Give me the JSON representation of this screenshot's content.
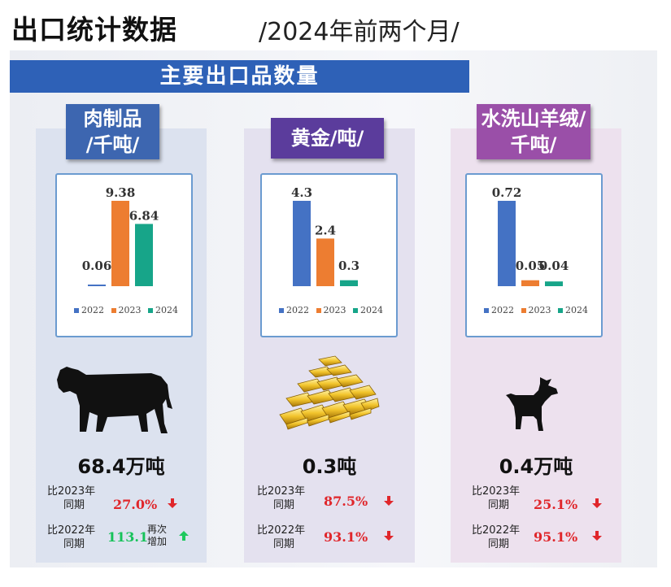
{
  "header": {
    "title": "出口统计数据",
    "subtitle": "/2024年前两个月/"
  },
  "banner": {
    "text": "主要出口品数量"
  },
  "colors": {
    "y2022": "#4472c4",
    "y2023": "#ed7d31",
    "y2024": "#17a589",
    "down": "#e0262b",
    "up": "#1ec95e",
    "gain": "#17c25a",
    "loss": "#e0262b"
  },
  "products": [
    {
      "label_line1": "肉制品",
      "label_line2": "/千吨/",
      "label_color": "#3d66b0",
      "icon": "cow-icon",
      "total": "68.4万吨",
      "cmp2023_label1": "比2023年",
      "cmp2023_label2": "同期",
      "cmp2023_pct": "27.0%",
      "cmp2023_dir": "down",
      "cmp2022_label1": "比2022年",
      "cmp2022_label2": "同期",
      "cmp2022_pct": "113.1",
      "cmp2022_dir": "up",
      "cmp2022_note1": "再次",
      "cmp2022_note2": "增加"
    },
    {
      "label_line1": "黄金/吨/",
      "label_line2": "",
      "label_color": "#5b3c9c",
      "icon": "gold-bars-icon",
      "total": "0.3吨",
      "cmp2023_label1": "比2023年",
      "cmp2023_label2": "同期",
      "cmp2023_pct": "87.5%",
      "cmp2023_dir": "down",
      "cmp2022_label1": "比2022年",
      "cmp2022_label2": "同期",
      "cmp2022_pct": "93.1%",
      "cmp2022_dir": "down"
    },
    {
      "label_line1": "水洗山羊绒/",
      "label_line2": "千吨/",
      "label_color": "#9a4fa8",
      "icon": "goat-icon",
      "total": "0.4万吨",
      "cmp2023_label1": "比2023年",
      "cmp2023_label2": "同期",
      "cmp2023_pct": "25.1%",
      "cmp2023_dir": "down",
      "cmp2022_label1": "比2022年",
      "cmp2022_label2": "同期",
      "cmp2022_pct": "95.1%",
      "cmp2022_dir": "down"
    }
  ],
  "chart_data": [
    {
      "type": "bar",
      "categories": [
        "2022",
        "2023",
        "2024"
      ],
      "values": [
        0.06,
        9.38,
        6.84
      ],
      "value_labels": [
        "0.06",
        "9.38",
        "6.84"
      ],
      "ylim": [
        0,
        9.38
      ],
      "legend": [
        "2022",
        "2023",
        "2024"
      ]
    },
    {
      "type": "bar",
      "categories": [
        "2022",
        "2023",
        "2024"
      ],
      "values": [
        4.3,
        2.4,
        0.3
      ],
      "value_labels": [
        "4.3",
        "2.4",
        "0.3"
      ],
      "ylim": [
        0,
        4.3
      ],
      "legend": [
        "2022",
        "2023",
        "2024"
      ]
    },
    {
      "type": "bar",
      "categories": [
        "2022",
        "2023",
        "2024"
      ],
      "values": [
        0.72,
        0.05,
        0.04
      ],
      "value_labels": [
        "0.72",
        "0.05",
        "0.04"
      ],
      "ylim": [
        0,
        0.72
      ],
      "legend": [
        "2022",
        "2023",
        "2024"
      ]
    }
  ]
}
